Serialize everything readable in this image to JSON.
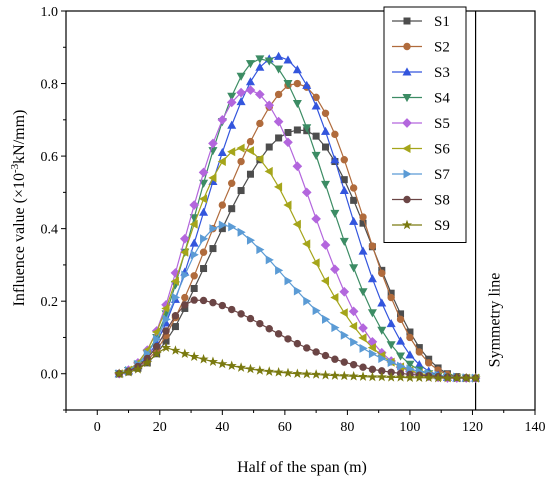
{
  "chart_data": {
    "type": "line",
    "title": "",
    "xlabel": "Half of the span (m)",
    "ylabel_prefix": "Influence value (×10",
    "ylabel_sup": "-3",
    "ylabel_suffix": "kN/mm)",
    "xlim": [
      -10,
      140
    ],
    "ylim": [
      -0.1,
      1.0
    ],
    "xticks": [
      0,
      20,
      40,
      60,
      80,
      100,
      120,
      140
    ],
    "yticks": [
      0.0,
      0.2,
      0.4,
      0.6,
      0.8,
      1.0
    ],
    "xtick_labels": [
      "0",
      "20",
      "40",
      "60",
      "80",
      "100",
      "120",
      "140"
    ],
    "ytick_labels": [
      "0.0",
      "0.2",
      "0.4",
      "0.6",
      "0.8",
      "1.0"
    ],
    "grid": false,
    "legend_position": "top-right",
    "annotation": {
      "text": "Symmetry line",
      "x": 121
    },
    "x": [
      7,
      10,
      13,
      16,
      19,
      22,
      25,
      28,
      31,
      34,
      37,
      40,
      43,
      46,
      49,
      52,
      55,
      58,
      61,
      64,
      67,
      70,
      73,
      76,
      79,
      82,
      85,
      88,
      91,
      94,
      97,
      100,
      103,
      106,
      109,
      112,
      115,
      118,
      121
    ],
    "series": [
      {
        "name": "S1",
        "color": "#4d4d4d",
        "marker": "square",
        "values": [
          0.0,
          0.005,
          0.015,
          0.03,
          0.055,
          0.09,
          0.13,
          0.18,
          0.235,
          0.29,
          0.345,
          0.4,
          0.455,
          0.505,
          0.55,
          0.59,
          0.625,
          0.65,
          0.665,
          0.672,
          0.67,
          0.655,
          0.625,
          0.585,
          0.535,
          0.478,
          0.415,
          0.35,
          0.285,
          0.222,
          0.165,
          0.115,
          0.072,
          0.04,
          0.016,
          0.0,
          -0.008,
          -0.012,
          -0.012
        ]
      },
      {
        "name": "S2",
        "color": "#b06b3c",
        "marker": "circle",
        "values": [
          0.0,
          0.006,
          0.018,
          0.036,
          0.065,
          0.105,
          0.155,
          0.21,
          0.27,
          0.335,
          0.4,
          0.465,
          0.525,
          0.585,
          0.64,
          0.69,
          0.735,
          0.77,
          0.795,
          0.8,
          0.79,
          0.762,
          0.718,
          0.66,
          0.59,
          0.512,
          0.432,
          0.352,
          0.277,
          0.21,
          0.15,
          0.1,
          0.06,
          0.03,
          0.01,
          -0.002,
          -0.01,
          -0.012,
          -0.012
        ]
      },
      {
        "name": "S3",
        "color": "#3355dd",
        "marker": "triangle-up",
        "values": [
          0.0,
          0.008,
          0.022,
          0.046,
          0.085,
          0.14,
          0.205,
          0.28,
          0.36,
          0.445,
          0.53,
          0.61,
          0.685,
          0.75,
          0.805,
          0.845,
          0.868,
          0.875,
          0.865,
          0.838,
          0.795,
          0.738,
          0.668,
          0.59,
          0.505,
          0.42,
          0.338,
          0.262,
          0.195,
          0.138,
          0.09,
          0.052,
          0.025,
          0.007,
          -0.004,
          -0.01,
          -0.012,
          -0.012,
          -0.012
        ]
      },
      {
        "name": "S4",
        "color": "#3c8c64",
        "marker": "triangle-down",
        "values": [
          0.0,
          0.009,
          0.026,
          0.055,
          0.1,
          0.165,
          0.245,
          0.335,
          0.43,
          0.525,
          0.615,
          0.695,
          0.765,
          0.82,
          0.855,
          0.868,
          0.862,
          0.84,
          0.8,
          0.745,
          0.678,
          0.602,
          0.522,
          0.442,
          0.365,
          0.292,
          0.226,
          0.168,
          0.12,
          0.08,
          0.049,
          0.026,
          0.01,
          0.0,
          -0.007,
          -0.01,
          -0.012,
          -0.012,
          -0.012
        ]
      },
      {
        "name": "S5",
        "color": "#b366dd",
        "marker": "diamond",
        "values": [
          0.0,
          0.01,
          0.03,
          0.065,
          0.118,
          0.19,
          0.278,
          0.372,
          0.465,
          0.555,
          0.635,
          0.7,
          0.748,
          0.775,
          0.782,
          0.77,
          0.74,
          0.695,
          0.638,
          0.572,
          0.5,
          0.427,
          0.355,
          0.288,
          0.226,
          0.172,
          0.126,
          0.088,
          0.058,
          0.035,
          0.018,
          0.006,
          -0.002,
          -0.007,
          -0.01,
          -0.012,
          -0.012,
          -0.012,
          -0.012
        ]
      },
      {
        "name": "S6",
        "color": "#a5a51a",
        "marker": "triangle-left",
        "values": [
          0.0,
          0.01,
          0.03,
          0.065,
          0.115,
          0.18,
          0.255,
          0.335,
          0.412,
          0.482,
          0.54,
          0.585,
          0.612,
          0.622,
          0.615,
          0.592,
          0.558,
          0.515,
          0.465,
          0.412,
          0.358,
          0.306,
          0.256,
          0.21,
          0.168,
          0.131,
          0.099,
          0.072,
          0.05,
          0.032,
          0.019,
          0.009,
          0.001,
          -0.004,
          -0.008,
          -0.01,
          -0.011,
          -0.012,
          -0.012
        ]
      },
      {
        "name": "S7",
        "color": "#5b9bd5",
        "marker": "triangle-right",
        "values": [
          0.0,
          0.009,
          0.026,
          0.055,
          0.095,
          0.15,
          0.21,
          0.272,
          0.328,
          0.372,
          0.4,
          0.41,
          0.405,
          0.39,
          0.368,
          0.342,
          0.314,
          0.285,
          0.256,
          0.228,
          0.2,
          0.174,
          0.15,
          0.127,
          0.106,
          0.087,
          0.07,
          0.055,
          0.042,
          0.031,
          0.021,
          0.013,
          0.006,
          0.001,
          -0.004,
          -0.007,
          -0.009,
          -0.011,
          -0.012
        ]
      },
      {
        "name": "S8",
        "color": "#6b4545",
        "marker": "circle",
        "values": [
          0.0,
          0.007,
          0.02,
          0.042,
          0.075,
          0.118,
          0.16,
          0.19,
          0.203,
          0.202,
          0.196,
          0.188,
          0.177,
          0.165,
          0.152,
          0.138,
          0.124,
          0.11,
          0.096,
          0.083,
          0.071,
          0.06,
          0.05,
          0.04,
          0.032,
          0.025,
          0.018,
          0.012,
          0.008,
          0.004,
          0.001,
          -0.002,
          -0.004,
          -0.006,
          -0.008,
          -0.009,
          -0.01,
          -0.011,
          -0.012
        ]
      },
      {
        "name": "S9",
        "color": "#7a7a10",
        "marker": "star",
        "values": [
          0.0,
          0.004,
          0.012,
          0.03,
          0.055,
          0.072,
          0.064,
          0.055,
          0.047,
          0.04,
          0.033,
          0.027,
          0.022,
          0.017,
          0.013,
          0.009,
          0.006,
          0.004,
          0.002,
          0.0,
          -0.001,
          -0.002,
          -0.004,
          -0.005,
          -0.006,
          -0.007,
          -0.008,
          -0.009,
          -0.009,
          -0.01,
          -0.01,
          -0.011,
          -0.011,
          -0.011,
          -0.012,
          -0.012,
          -0.012,
          -0.012,
          -0.012
        ]
      }
    ]
  }
}
